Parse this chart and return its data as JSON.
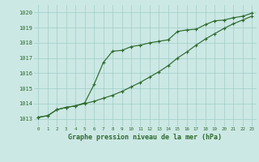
{
  "line1_x": [
    0,
    1,
    2,
    3,
    4,
    5,
    6,
    7,
    8,
    9,
    10,
    11,
    12,
    13,
    14,
    15,
    16,
    17,
    18,
    19,
    20,
    21,
    22,
    23
  ],
  "line1_y": [
    1013.1,
    1013.2,
    1013.6,
    1013.75,
    1013.85,
    1014.05,
    1015.25,
    1016.7,
    1017.45,
    1017.5,
    1017.75,
    1017.85,
    1018.0,
    1018.1,
    1018.2,
    1018.75,
    1018.85,
    1018.9,
    1019.2,
    1019.45,
    1019.5,
    1019.65,
    1019.75,
    1019.95
  ],
  "line2_x": [
    0,
    1,
    2,
    3,
    4,
    5,
    6,
    7,
    8,
    9,
    10,
    11,
    12,
    13,
    14,
    15,
    16,
    17,
    18,
    19,
    20,
    21,
    22,
    23
  ],
  "line2_y": [
    1013.1,
    1013.2,
    1013.6,
    1013.75,
    1013.85,
    1014.0,
    1014.15,
    1014.35,
    1014.55,
    1014.8,
    1015.1,
    1015.4,
    1015.75,
    1016.1,
    1016.5,
    1017.0,
    1017.4,
    1017.85,
    1018.25,
    1018.6,
    1018.95,
    1019.25,
    1019.5,
    1019.75
  ],
  "line_color": "#2d6a2d",
  "bg_color": "#cce8e4",
  "grid_color": "#9ecdc7",
  "xlabel": "Graphe pression niveau de la mer (hPa)",
  "ylim": [
    1012.5,
    1020.5
  ],
  "xlim": [
    -0.5,
    23.5
  ],
  "yticks": [
    1013,
    1014,
    1015,
    1016,
    1017,
    1018,
    1019,
    1020
  ],
  "xticks": [
    0,
    1,
    2,
    3,
    4,
    5,
    6,
    7,
    8,
    9,
    10,
    11,
    12,
    13,
    14,
    15,
    16,
    17,
    18,
    19,
    20,
    21,
    22,
    23
  ]
}
